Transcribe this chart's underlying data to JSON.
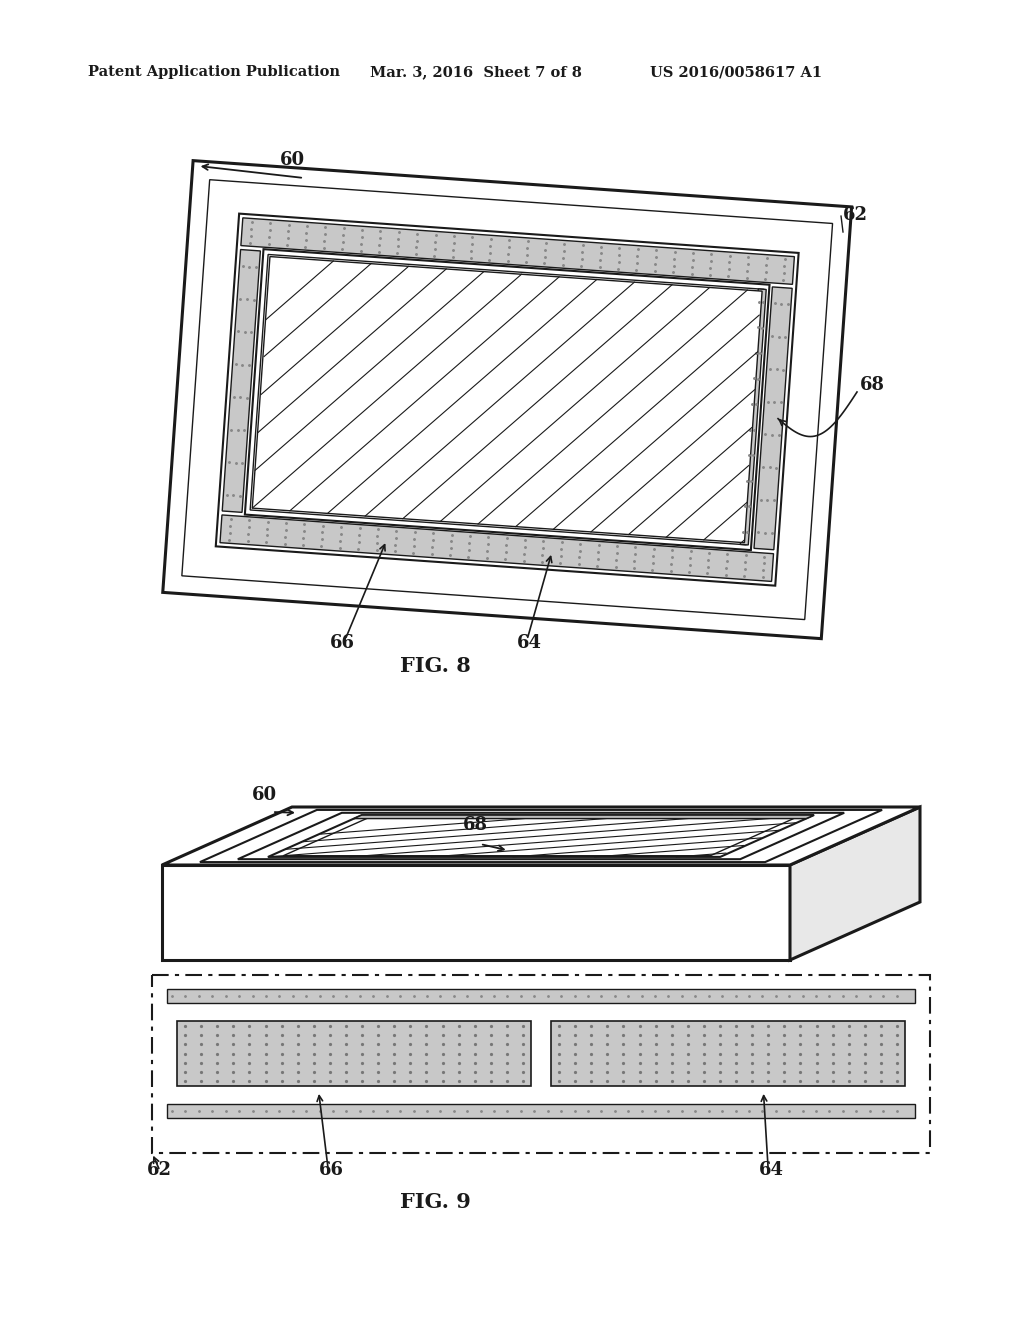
{
  "header_left": "Patent Application Publication",
  "header_mid": "Mar. 3, 2016  Sheet 7 of 8",
  "header_right": "US 2016/0058617 A1",
  "fig8_label": "FIG. 8",
  "fig9_label": "FIG. 9",
  "bg_color": "#ffffff",
  "line_color": "#1a1a1a",
  "stipple_color": "#c8c8c8",
  "labels": {
    "60a": "60",
    "62a": "62",
    "64a": "64",
    "66a": "66",
    "68a": "68",
    "60b": "60",
    "62b": "62",
    "64b": "64",
    "66b": "66",
    "68b": "68"
  }
}
